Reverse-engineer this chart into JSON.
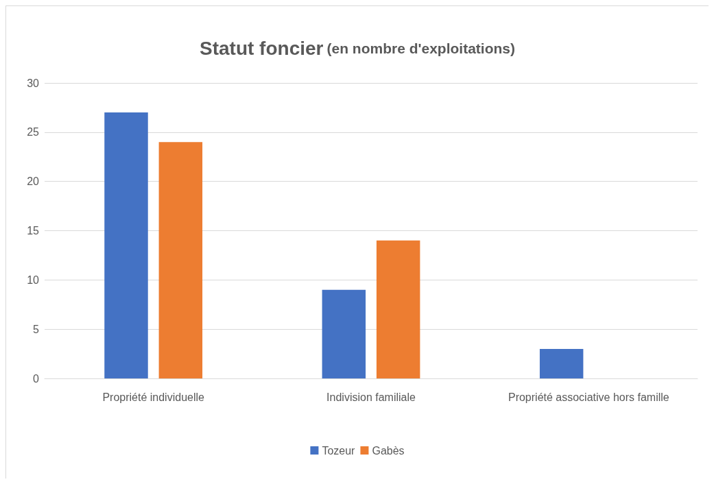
{
  "chart_data": {
    "type": "bar",
    "title": "Statut foncier",
    "subtitle": "(en nombre d'exploitations)",
    "categories": [
      "Propriété individuelle",
      "Indivision familiale",
      "Propriété associative hors famille"
    ],
    "series": [
      {
        "name": "Tozeur",
        "color": "#4472c4",
        "values": [
          27,
          9,
          3
        ]
      },
      {
        "name": "Gabès",
        "color": "#ed7d31",
        "values": [
          24,
          14,
          0
        ]
      }
    ],
    "ylim": [
      0,
      30
    ],
    "yticks": [
      0,
      5,
      10,
      15,
      20,
      25,
      30
    ],
    "grid": "y",
    "legend": "bottom"
  }
}
